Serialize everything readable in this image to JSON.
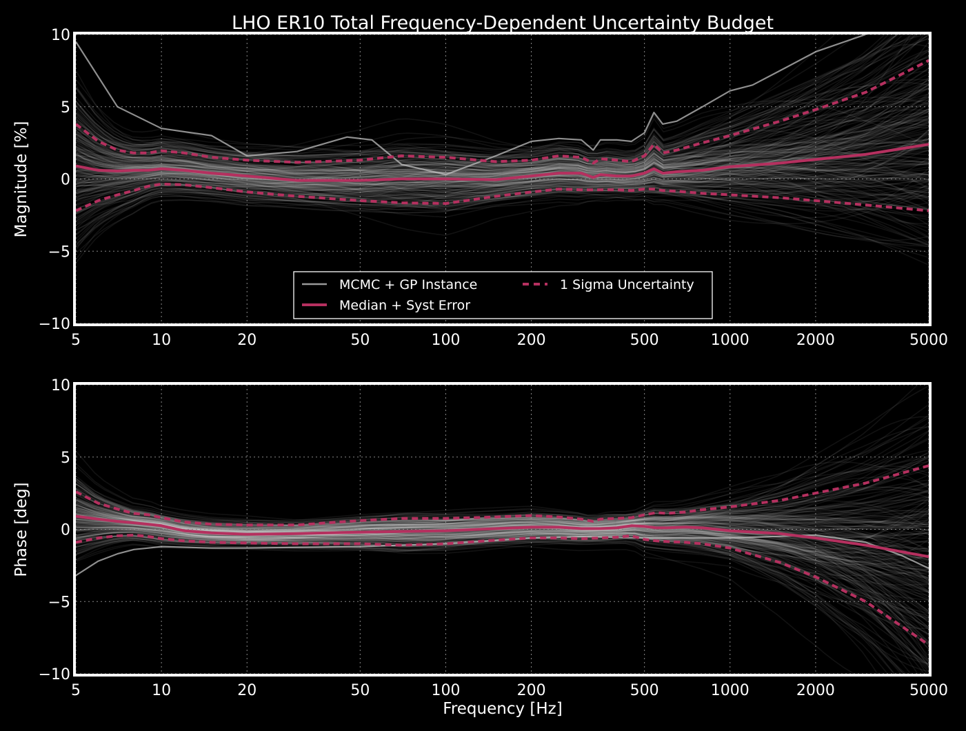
{
  "title": "LHO ER10 Total Frequency-Dependent Uncertainty Budget",
  "colors": {
    "background": "#000000",
    "frame": "#ffffff",
    "grid": "#8a8a8a",
    "instance": "#bfbfbf",
    "median": "#b5305f",
    "sigma": "#b5305f"
  },
  "chart_data": [
    {
      "type": "line",
      "panel": "magnitude",
      "title": "LHO ER10 Total Frequency-Dependent Uncertainty Budget",
      "xlabel": "",
      "ylabel": "Magnitude [%]",
      "xscale": "log",
      "xlim": [
        5,
        5000
      ],
      "ylim": [
        -10,
        10
      ],
      "xticks": [
        5,
        10,
        20,
        50,
        100,
        200,
        500,
        1000,
        2000,
        5000
      ],
      "xtick_labels": [
        "5",
        "10",
        "20",
        "50",
        "100",
        "200",
        "500",
        "1000",
        "2000",
        "5000"
      ],
      "yticks": [
        -10,
        -5,
        0,
        5,
        10
      ],
      "ytick_labels": [
        "−10",
        "−5",
        "0",
        "5",
        "10"
      ],
      "grid": true,
      "legend": {
        "placement": "lower-center",
        "columns": 2,
        "entries": [
          {
            "label": "MCMC + GP Instance",
            "style": "solid-thin",
            "color": "#9a9a9a"
          },
          {
            "label": "1 Sigma Uncertainty",
            "style": "dashed",
            "color": "#b5305f"
          },
          {
            "label": "Median + Syst Error",
            "style": "solid-thick",
            "color": "#b5305f"
          }
        ]
      },
      "series": [
        {
          "name": "Median + Syst Error",
          "style": "solid",
          "x": [
            5,
            6,
            7,
            8,
            9,
            10,
            12,
            15,
            20,
            30,
            50,
            70,
            100,
            150,
            200,
            250,
            300,
            330,
            350,
            400,
            450,
            500,
            540,
            580,
            650,
            800,
            1000,
            1500,
            2000,
            3000,
            5000
          ],
          "y": [
            0.9,
            0.6,
            0.55,
            0.6,
            0.6,
            0.7,
            0.6,
            0.4,
            0.2,
            -0.1,
            -0.1,
            0.0,
            0.0,
            -0.05,
            0.2,
            0.4,
            0.4,
            0.1,
            0.3,
            0.2,
            0.2,
            0.4,
            0.7,
            0.4,
            0.5,
            0.6,
            0.85,
            1.1,
            1.35,
            1.7,
            2.4
          ]
        },
        {
          "name": "1 Sigma Uncertainty",
          "style": "dashed",
          "x": [
            5,
            6,
            7,
            8,
            9,
            10,
            12,
            15,
            20,
            30,
            50,
            70,
            100,
            150,
            200,
            250,
            300,
            330,
            350,
            400,
            450,
            500,
            540,
            580,
            650,
            800,
            1000,
            1500,
            2000,
            3000,
            5000
          ],
          "y": [
            3.8,
            2.6,
            2.0,
            1.8,
            1.8,
            1.95,
            1.8,
            1.5,
            1.3,
            1.15,
            1.3,
            1.6,
            1.5,
            1.2,
            1.3,
            1.6,
            1.5,
            1.1,
            1.4,
            1.3,
            1.2,
            1.6,
            2.4,
            1.8,
            2.0,
            2.5,
            3.0,
            4.0,
            4.8,
            6.0,
            8.2
          ]
        },
        {
          "name": "1 Sigma Uncertainty",
          "style": "dashed",
          "x": [
            5,
            6,
            7,
            8,
            9,
            10,
            12,
            15,
            20,
            30,
            50,
            70,
            100,
            150,
            200,
            250,
            300,
            350,
            400,
            450,
            500,
            540,
            580,
            650,
            800,
            1000,
            1500,
            2000,
            3000,
            5000
          ],
          "y": [
            -2.2,
            -1.5,
            -1.1,
            -0.8,
            -0.5,
            -0.35,
            -0.4,
            -0.6,
            -0.9,
            -1.2,
            -1.5,
            -1.65,
            -1.7,
            -1.2,
            -0.9,
            -0.7,
            -0.75,
            -0.75,
            -0.75,
            -0.8,
            -0.7,
            -0.7,
            -0.8,
            -0.85,
            -1.0,
            -1.1,
            -1.3,
            -1.5,
            -1.8,
            -2.2
          ]
        },
        {
          "name": "MCMC + GP Instance",
          "style": "solid-thin",
          "x": [
            5,
            7,
            10,
            15,
            20,
            30,
            45,
            55,
            70,
            100,
            150,
            200,
            250,
            300,
            330,
            350,
            400,
            450,
            500,
            540,
            580,
            650,
            800,
            1000,
            1200,
            1500,
            2000,
            3000
          ],
          "y": [
            9.5,
            5.0,
            3.5,
            3.0,
            1.6,
            1.9,
            2.9,
            2.7,
            1.0,
            0.3,
            1.6,
            2.6,
            2.8,
            2.7,
            2.0,
            2.7,
            2.7,
            2.6,
            3.2,
            4.6,
            3.8,
            4.0,
            5.0,
            6.1,
            6.5,
            7.5,
            8.8,
            10.0
          ]
        }
      ]
    },
    {
      "type": "line",
      "panel": "phase",
      "title": "",
      "xlabel": "Frequency [Hz]",
      "ylabel": "Phase [deg]",
      "xscale": "log",
      "xlim": [
        5,
        5000
      ],
      "ylim": [
        -10,
        10
      ],
      "xticks": [
        5,
        10,
        20,
        50,
        100,
        200,
        500,
        1000,
        2000,
        5000
      ],
      "xtick_labels": [
        "5",
        "10",
        "20",
        "50",
        "100",
        "200",
        "500",
        "1000",
        "2000",
        "5000"
      ],
      "yticks": [
        -10,
        -5,
        0,
        5,
        10
      ],
      "ytick_labels": [
        "−10",
        "−5",
        "0",
        "5",
        "10"
      ],
      "grid": true,
      "series": [
        {
          "name": "Median + Syst Error",
          "style": "solid",
          "x": [
            5,
            6,
            7,
            8,
            9,
            10,
            12,
            15,
            20,
            30,
            50,
            70,
            100,
            150,
            200,
            250,
            300,
            350,
            400,
            450,
            500,
            550,
            600,
            700,
            800,
            1000,
            1500,
            2000,
            3000,
            5000
          ],
          "y": [
            0.9,
            0.7,
            0.55,
            0.45,
            0.35,
            0.25,
            -0.1,
            -0.25,
            -0.35,
            -0.3,
            -0.2,
            -0.15,
            -0.1,
            0.05,
            0.15,
            0.15,
            0.05,
            0.05,
            0.1,
            0.25,
            0.2,
            0.1,
            0.1,
            0.15,
            0.1,
            -0.1,
            -0.3,
            -0.6,
            -1.1,
            -1.9
          ]
        },
        {
          "name": "1 Sigma Uncertainty",
          "style": "dashed",
          "x": [
            5,
            6,
            7,
            8,
            9,
            10,
            12,
            15,
            20,
            30,
            50,
            70,
            100,
            150,
            200,
            250,
            300,
            330,
            350,
            400,
            450,
            500,
            550,
            600,
            700,
            800,
            1000,
            1500,
            2000,
            3000,
            5000
          ],
          "y": [
            2.6,
            1.8,
            1.4,
            1.1,
            1.0,
            0.8,
            0.5,
            0.35,
            0.3,
            0.3,
            0.6,
            0.75,
            0.75,
            0.85,
            0.95,
            0.85,
            0.7,
            0.55,
            0.7,
            0.75,
            0.8,
            1.0,
            1.15,
            1.1,
            1.2,
            1.35,
            1.55,
            2.0,
            2.5,
            3.2,
            4.4
          ]
        },
        {
          "name": "1 Sigma Uncertainty",
          "style": "dashed",
          "x": [
            5,
            6,
            7,
            8,
            9,
            10,
            12,
            15,
            20,
            30,
            50,
            70,
            100,
            150,
            200,
            250,
            300,
            350,
            400,
            450,
            500,
            550,
            600,
            700,
            800,
            1000,
            1500,
            2000,
            3000,
            5000
          ],
          "y": [
            -0.9,
            -0.6,
            -0.45,
            -0.4,
            -0.5,
            -0.65,
            -0.8,
            -0.9,
            -0.95,
            -1.0,
            -1.0,
            -1.1,
            -1.0,
            -0.75,
            -0.6,
            -0.6,
            -0.65,
            -0.6,
            -0.55,
            -0.45,
            -0.7,
            -0.8,
            -0.85,
            -0.9,
            -1.0,
            -1.3,
            -2.3,
            -3.3,
            -5.0,
            -8.0
          ]
        },
        {
          "name": "MCMC + GP Instance",
          "style": "solid-thin",
          "x": [
            5,
            6,
            7,
            8,
            9,
            10,
            15,
            20,
            50,
            100,
            200,
            300,
            500,
            1000,
            2000,
            3000,
            4000,
            5000
          ],
          "y": [
            -3.2,
            -2.2,
            -1.7,
            -1.4,
            -1.3,
            -1.2,
            -1.3,
            -1.3,
            -1.2,
            -1.0,
            -0.6,
            -0.5,
            -0.6,
            -0.6,
            -0.4,
            -0.9,
            -1.8,
            -2.7
          ]
        }
      ]
    }
  ]
}
